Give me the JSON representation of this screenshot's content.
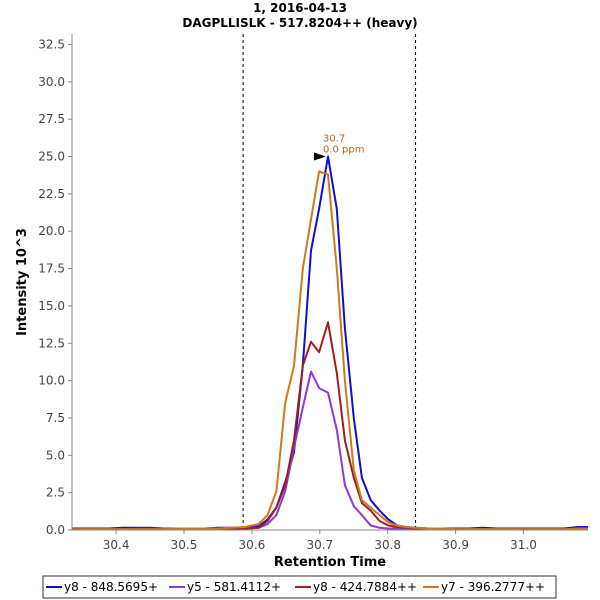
{
  "chart_data": {
    "type": "line",
    "title": "1, 2016-04-13",
    "subtitle": "DAGPLLISLK - 517.8204++ (heavy)",
    "xlabel": "Retention Time",
    "ylabel": "Intensity 10^3",
    "xlim": [
      30.335,
      31.095
    ],
    "ylim": [
      0,
      33.2
    ],
    "xticks": [
      "30.4",
      "30.5",
      "30.6",
      "30.7",
      "30.8",
      "30.9",
      "31.0"
    ],
    "yticks": [
      "0.0",
      "2.5",
      "5.0",
      "7.5",
      "10.0",
      "12.5",
      "15.0",
      "17.5",
      "20.0",
      "22.5",
      "25.0",
      "27.5",
      "30.0",
      "32.5"
    ],
    "grid": false,
    "legend_position": "bottom",
    "boundaries": [
      30.587,
      30.841
    ],
    "peak_annotation": {
      "x": 30.712,
      "y": 25.0,
      "label1": "30.7",
      "label2": "0.0 ppm"
    },
    "x": [
      30.335,
      30.35,
      30.37,
      30.39,
      30.41,
      30.43,
      30.45,
      30.47,
      30.49,
      30.51,
      30.53,
      30.55,
      30.57,
      30.59,
      30.61,
      30.623,
      30.636,
      30.649,
      30.662,
      30.675,
      30.687,
      30.699,
      30.712,
      30.725,
      30.737,
      30.75,
      30.762,
      30.775,
      30.788,
      30.801,
      30.814,
      30.827,
      30.84,
      30.86,
      30.88,
      30.9,
      30.92,
      30.94,
      30.96,
      30.98,
      31.0,
      31.02,
      31.04,
      31.06,
      31.08,
      31.095
    ],
    "series": [
      {
        "name": "y8 - 848.5695+",
        "color": "#1010c8",
        "values": [
          0.1,
          0.1,
          0.1,
          0.1,
          0.15,
          0.15,
          0.15,
          0.1,
          0.1,
          0.1,
          0.1,
          0.15,
          0.15,
          0.15,
          0.25,
          0.7,
          1.5,
          3.2,
          5.2,
          11,
          18.7,
          21.5,
          25.0,
          21.5,
          13.5,
          7.5,
          3.5,
          2.0,
          1.3,
          0.7,
          0.3,
          0.2,
          0.15,
          0.1,
          0.1,
          0.1,
          0.1,
          0.15,
          0.1,
          0.1,
          0.1,
          0.1,
          0.1,
          0.1,
          0.2,
          0.2
        ]
      },
      {
        "name": "y5 - 581.4112+",
        "color": "#8a3ad6",
        "values": [
          0.05,
          0.05,
          0.05,
          0.05,
          0.05,
          0.05,
          0.05,
          0.05,
          0.05,
          0.05,
          0.05,
          0.05,
          0.1,
          0.1,
          0.15,
          0.4,
          1.0,
          2.6,
          5.5,
          8.2,
          10.6,
          9.5,
          9.2,
          6.7,
          3.0,
          1.6,
          1.0,
          0.3,
          0.15,
          0.1,
          0.1,
          0.05,
          0.05,
          0.05,
          0.05,
          0.05,
          0.05,
          0.05,
          0.05,
          0.05,
          0.05,
          0.05,
          0.05,
          0.05,
          0.1,
          0.1
        ]
      },
      {
        "name": "y8 - 424.7884++",
        "color": "#a01e1e",
        "values": [
          0.05,
          0.05,
          0.05,
          0.05,
          0.05,
          0.1,
          0.1,
          0.1,
          0.1,
          0.1,
          0.1,
          0.1,
          0.1,
          0.1,
          0.15,
          0.6,
          1.5,
          3.0,
          6.0,
          11.0,
          12.6,
          11.9,
          13.9,
          10.5,
          6.0,
          3.5,
          1.8,
          1.3,
          0.6,
          0.3,
          0.2,
          0.15,
          0.1,
          0.1,
          0.05,
          0.05,
          0.05,
          0.05,
          0.05,
          0.05,
          0.05,
          0.05,
          0.05,
          0.05,
          0.1,
          0.1
        ]
      },
      {
        "name": "y7 - 396.2777++",
        "color": "#cc7a22",
        "values": [
          0.05,
          0.05,
          0.05,
          0.05,
          0.05,
          0.05,
          0.05,
          0.05,
          0.1,
          0.1,
          0.1,
          0.1,
          0.15,
          0.2,
          0.4,
          1.0,
          2.6,
          8.5,
          11,
          17.5,
          20.8,
          24.0,
          23.8,
          17.5,
          10.0,
          4.0,
          2.0,
          1.5,
          1.0,
          0.5,
          0.3,
          0.2,
          0.15,
          0.1,
          0.1,
          0.05,
          0.05,
          0.05,
          0.05,
          0.05,
          0.05,
          0.05,
          0.05,
          0.05,
          0.1,
          0.1
        ]
      }
    ]
  }
}
